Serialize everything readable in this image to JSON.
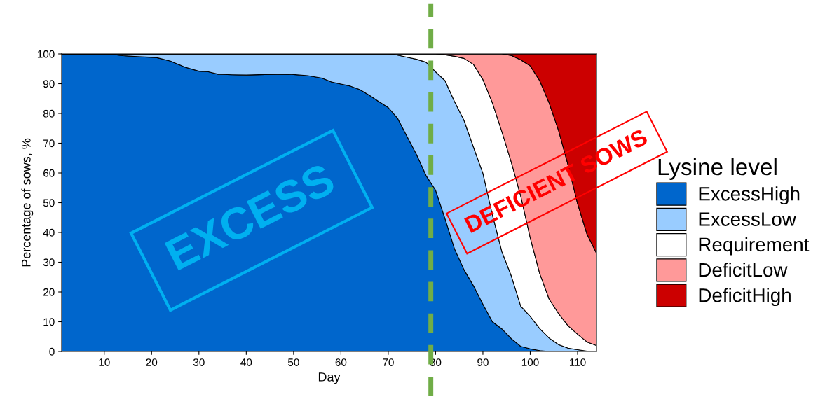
{
  "chart_data": {
    "type": "area",
    "stacked": true,
    "xlabel": "Day",
    "ylabel": "Percentage of sows, %",
    "legend_title": "Lysine level",
    "legend": "right",
    "x": [
      1,
      10,
      12,
      14,
      17,
      21,
      24,
      27,
      30,
      32,
      34,
      37,
      40,
      44,
      49,
      53,
      56,
      58,
      60,
      62,
      64,
      66,
      68,
      70,
      72,
      74,
      76,
      78,
      80,
      82,
      84,
      86,
      88,
      90,
      92,
      94,
      96,
      98,
      100,
      102,
      104,
      106,
      108,
      110,
      112,
      114
    ],
    "series": [
      {
        "name": "ExcessHigh",
        "color": "#0066cc",
        "values": [
          100,
          100,
          99.8,
          99.4,
          99.1,
          98.8,
          97.6,
          95.6,
          94.2,
          94.0,
          93.2,
          93.0,
          92.9,
          93.1,
          93.2,
          92.7,
          91.9,
          90.6,
          89.9,
          89.2,
          88.0,
          86.1,
          84.0,
          82.0,
          78.3,
          72.2,
          66.1,
          59.1,
          54.2,
          44.6,
          34.5,
          27.5,
          22.1,
          15.9,
          10.0,
          7.6,
          4.3,
          1.7,
          0.9,
          0.3,
          0,
          null,
          null,
          null,
          null,
          null
        ]
      },
      {
        "name": "ExcessLow",
        "color": "#99ccff",
        "values": [
          0,
          0,
          0.2,
          0.6,
          0.9,
          1.2,
          2.4,
          4.4,
          5.8,
          6.0,
          6.8,
          7.0,
          7.1,
          6.9,
          6.8,
          7.3,
          8.1,
          9.4,
          10.1,
          10.8,
          12.0,
          13.9,
          16.0,
          18.0,
          21.3,
          26.7,
          32.1,
          38.1,
          39.8,
          46.4,
          49.5,
          50.2,
          46.6,
          44.0,
          36.0,
          26.0,
          21.1,
          13.5,
          10.9,
          7.4,
          4.5,
          2.3,
          1.1,
          0.6,
          0.1,
          null
        ]
      },
      {
        "name": "Requirement",
        "color": "#ffffff",
        "values": [
          0,
          0,
          0,
          0,
          0,
          0,
          0,
          0,
          0,
          0,
          0,
          0,
          0,
          0,
          0,
          0,
          0,
          0,
          0,
          0,
          0,
          0,
          0,
          0,
          0.4,
          1.1,
          1.8,
          2.8,
          6.0,
          8.7,
          15.2,
          20.8,
          27.8,
          31.5,
          37.6,
          40.3,
          38.2,
          37.0,
          26.4,
          18.5,
          13.1,
          10.4,
          7.5,
          5.2,
          3.1,
          2.0
        ]
      },
      {
        "name": "DeficitLow",
        "color": "#ff9999",
        "values": [
          0,
          0,
          0,
          0,
          0,
          0,
          0,
          0,
          0,
          0,
          0,
          0,
          0,
          0,
          0,
          0,
          0,
          0,
          0,
          0,
          0,
          0,
          0,
          0,
          0,
          0,
          0,
          0,
          0,
          0.3,
          0.8,
          1.5,
          3.5,
          8.6,
          16.4,
          26.1,
          35.9,
          45.8,
          57.8,
          64.8,
          65.9,
          61.5,
          54.0,
          43.9,
          36.2,
          31.0
        ]
      },
      {
        "name": "DeficitHigh",
        "color": "#cc0000",
        "values": [
          0,
          0,
          0,
          0,
          0,
          0,
          0,
          0,
          0,
          0,
          0,
          0,
          0,
          0,
          0,
          0,
          0,
          0,
          0,
          0,
          0,
          0,
          0,
          0,
          0,
          0,
          0,
          0,
          0,
          0,
          0,
          0,
          0,
          0,
          0,
          0,
          0.5,
          2.0,
          4.0,
          9.0,
          16.5,
          25.8,
          37.4,
          50.3,
          60.6,
          67.0
        ]
      }
    ],
    "xlim": [
      1,
      114
    ],
    "xticks": [
      10,
      20,
      30,
      40,
      50,
      60,
      70,
      80,
      90,
      100,
      110
    ],
    "ylim": [
      0,
      100
    ],
    "yticks": [
      0,
      10,
      20,
      30,
      40,
      50,
      60,
      70,
      80,
      90,
      100
    ],
    "grid": false,
    "ref_lines": [
      {
        "axis": "x",
        "value": 79,
        "color": "#70ad47",
        "line_style": "dashed"
      }
    ],
    "annotations": [
      "EXCESS",
      "DEFICIENT SOWS"
    ]
  }
}
